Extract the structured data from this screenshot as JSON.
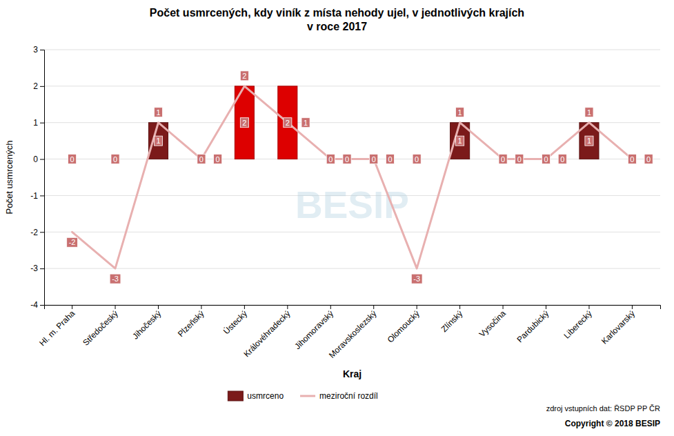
{
  "chart_data": {
    "type": "bar",
    "title": "Počet usmrcených, kdy viník z místa nehody ujel, v jednotlivých krajích\nv roce 2017",
    "xlabel": "Kraj",
    "ylabel": "Počet usmrcených",
    "categories": [
      "Hl. m. Praha",
      "Středočeský",
      "Jihočeský",
      "Plzeňský",
      "Ústecký",
      "Královéhradecký",
      "Jihomoravský",
      "Moravskoslezský",
      "Olomoucký",
      "Zlínský",
      "Vysočina",
      "Pardubický",
      "Liberecký",
      "Karlovarský"
    ],
    "series": [
      {
        "name": "usmrceno",
        "type": "bar",
        "colors": [
          "#7b1a1a",
          "#7b1a1a",
          "#7b1a1a",
          "#7b1a1a",
          "#dd0000",
          "#dd0000",
          "#7b1a1a",
          "#7b1a1a",
          "#7b1a1a",
          "#7b1a1a",
          "#7b1a1a",
          "#7b1a1a",
          "#7b1a1a",
          "#7b1a1a"
        ],
        "values": [
          0,
          0,
          1,
          0,
          2,
          2,
          0,
          0,
          0,
          1,
          0,
          0,
          1,
          0
        ]
      },
      {
        "name": "meziroční rozdíl",
        "type": "line",
        "color": "#e8b0b0",
        "values": [
          -2,
          -3,
          1,
          0,
          2,
          1,
          0,
          0,
          -3,
          1,
          0,
          0,
          1,
          0
        ]
      }
    ],
    "ylim": [
      -4,
      3
    ],
    "yticks": [
      -4,
      -3,
      -2,
      -1,
      0,
      1,
      2,
      3
    ],
    "grid": true,
    "legend": "bottom",
    "data_labels": true,
    "annotations": [
      "zdroj vstupních dat: ŘSDP PP ČR",
      "Copyright © 2018 BESIP",
      "BESIP"
    ]
  }
}
